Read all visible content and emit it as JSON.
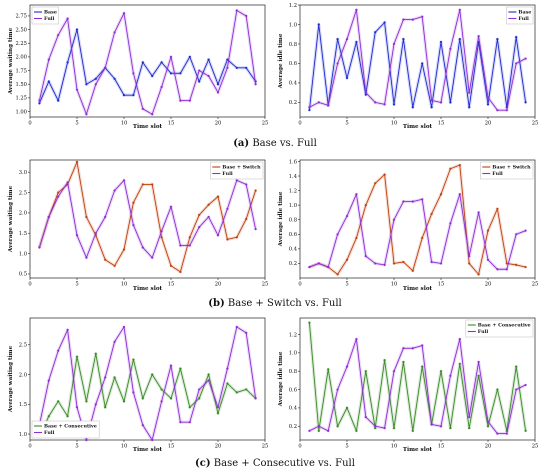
{
  "captions": [
    {
      "label": "(a)",
      "text": " Base vs. Full"
    },
    {
      "label": "(b)",
      "text": " Base + Switch vs. Full"
    },
    {
      "label": "(c)",
      "text": " Base + Consecutive vs. Full"
    }
  ],
  "colors": {
    "base": "#1f2bd0",
    "full": "#8e2fd6",
    "switch": "#c0400e",
    "consecutive": "#3a8a26"
  },
  "chart_data": [
    {
      "type": "line",
      "xlabel": "Time slot",
      "ylabel": "Average waiting time",
      "xlim": [
        0,
        25
      ],
      "ylim": [
        0.9,
        2.95
      ],
      "xticks": [
        0,
        5,
        10,
        15,
        20,
        25
      ],
      "yticks": [
        1.0,
        1.25,
        1.5,
        1.75,
        2.0,
        2.25,
        2.5,
        2.75
      ],
      "ytick_labels": [
        "1.00",
        "1.25",
        "1.50",
        "1.75",
        "2.00",
        "2.25",
        "2.50",
        "2.75"
      ],
      "legend_position": "top-left",
      "x": [
        1,
        2,
        3,
        4,
        5,
        6,
        7,
        8,
        9,
        10,
        11,
        12,
        13,
        14,
        15,
        16,
        17,
        18,
        19,
        20,
        21,
        22,
        23,
        24
      ],
      "series": [
        {
          "name": "Base",
          "color_key": "base",
          "values": [
            1.15,
            1.55,
            1.2,
            1.9,
            2.5,
            1.5,
            1.6,
            1.8,
            1.6,
            1.3,
            1.3,
            1.9,
            1.65,
            1.9,
            1.7,
            1.7,
            2.0,
            1.55,
            1.95,
            1.5,
            1.95,
            1.8,
            1.8,
            1.55
          ]
        },
        {
          "name": "Full",
          "color_key": "full",
          "values": [
            1.2,
            1.95,
            2.4,
            2.7,
            1.4,
            0.95,
            1.5,
            1.8,
            2.45,
            2.8,
            1.7,
            1.05,
            0.95,
            1.45,
            2.0,
            1.2,
            1.2,
            1.75,
            1.65,
            1.35,
            1.8,
            2.85,
            2.75,
            1.5
          ]
        }
      ]
    },
    {
      "type": "line",
      "xlabel": "Time slot",
      "ylabel": "Average idle time",
      "xlim": [
        0,
        25
      ],
      "ylim": [
        0.05,
        1.2
      ],
      "xticks": [
        0,
        5,
        10,
        15,
        20,
        25
      ],
      "yticks": [
        0.2,
        0.4,
        0.6,
        0.8,
        1.0,
        1.2
      ],
      "ytick_labels": [
        "0.2",
        "0.4",
        "0.6",
        "0.8",
        "1.0",
        "1.2"
      ],
      "legend_position": "top-right",
      "x": [
        1,
        2,
        3,
        4,
        5,
        6,
        7,
        8,
        9,
        10,
        11,
        12,
        13,
        14,
        15,
        16,
        17,
        18,
        19,
        20,
        21,
        22,
        23,
        24
      ],
      "series": [
        {
          "name": "Base",
          "color_key": "base",
          "values": [
            0.12,
            1.0,
            0.17,
            0.85,
            0.45,
            0.82,
            0.28,
            0.92,
            1.02,
            0.18,
            0.85,
            0.15,
            0.6,
            0.15,
            0.82,
            0.2,
            0.85,
            0.15,
            0.82,
            0.18,
            0.85,
            0.15,
            0.87,
            0.2
          ]
        },
        {
          "name": "Full",
          "color_key": "full",
          "values": [
            0.15,
            0.2,
            0.17,
            0.6,
            0.85,
            1.15,
            0.3,
            0.2,
            0.18,
            0.8,
            1.05,
            1.05,
            1.08,
            0.22,
            0.2,
            0.75,
            1.15,
            0.3,
            0.88,
            0.25,
            0.12,
            0.12,
            0.6,
            0.65
          ]
        }
      ]
    },
    {
      "type": "line",
      "xlabel": "Time slot",
      "ylabel": "Average waiting time",
      "xlim": [
        0,
        25
      ],
      "ylim": [
        0.4,
        3.3
      ],
      "xticks": [
        0,
        5,
        10,
        15,
        20,
        25
      ],
      "yticks": [
        0.5,
        1.0,
        1.5,
        2.0,
        2.5,
        3.0
      ],
      "ytick_labels": [
        "0.5",
        "1.0",
        "1.5",
        "2.0",
        "2.5",
        "3.0"
      ],
      "legend_position": "top-right",
      "x": [
        1,
        2,
        3,
        4,
        5,
        6,
        7,
        8,
        9,
        10,
        11,
        12,
        13,
        14,
        15,
        16,
        17,
        18,
        19,
        20,
        21,
        22,
        23,
        24
      ],
      "series": [
        {
          "name": "Base + Switch",
          "color_key": "switch",
          "values": [
            1.15,
            1.9,
            2.5,
            2.7,
            3.25,
            1.9,
            1.45,
            0.85,
            0.7,
            1.1,
            2.25,
            2.7,
            2.7,
            1.4,
            0.7,
            0.55,
            1.4,
            1.95,
            2.2,
            2.4,
            1.35,
            1.4,
            1.85,
            2.55
          ]
        },
        {
          "name": "Full",
          "color_key": "full",
          "values": [
            1.15,
            1.9,
            2.4,
            2.75,
            1.45,
            0.9,
            1.5,
            1.9,
            2.55,
            2.8,
            1.7,
            1.15,
            0.9,
            1.55,
            2.15,
            1.2,
            1.2,
            1.65,
            1.9,
            1.45,
            2.1,
            2.8,
            2.7,
            1.6
          ]
        }
      ]
    },
    {
      "type": "line",
      "xlabel": "Time slot",
      "ylabel": "Average idle time",
      "xlim": [
        0,
        25
      ],
      "ylim": [
        0.0,
        1.62
      ],
      "xticks": [
        0,
        5,
        10,
        15,
        20,
        25
      ],
      "yticks": [
        0.2,
        0.4,
        0.6,
        0.8,
        1.0,
        1.2,
        1.4,
        1.6
      ],
      "ytick_labels": [
        "0.2",
        "0.4",
        "0.6",
        "0.8",
        "1.0",
        "1.2",
        "1.4",
        "1.6"
      ],
      "legend_position": "top-right",
      "x": [
        1,
        2,
        3,
        4,
        5,
        6,
        7,
        8,
        9,
        10,
        11,
        12,
        13,
        14,
        15,
        16,
        17,
        18,
        19,
        20,
        21,
        22,
        23,
        24
      ],
      "series": [
        {
          "name": "Base + Switch",
          "color_key": "switch",
          "values": [
            0.15,
            0.2,
            0.15,
            0.05,
            0.25,
            0.55,
            1.0,
            1.3,
            1.42,
            0.2,
            0.22,
            0.1,
            0.55,
            0.88,
            1.15,
            1.5,
            1.55,
            0.2,
            0.05,
            0.65,
            0.95,
            0.2,
            0.18,
            0.15
          ]
        },
        {
          "name": "Full",
          "color_key": "full",
          "values": [
            0.15,
            0.2,
            0.15,
            0.6,
            0.85,
            1.15,
            0.3,
            0.2,
            0.18,
            0.8,
            1.05,
            1.05,
            1.08,
            0.22,
            0.2,
            0.75,
            1.15,
            0.3,
            0.9,
            0.25,
            0.12,
            0.12,
            0.6,
            0.65
          ]
        }
      ]
    },
    {
      "type": "line",
      "xlabel": "Time slot",
      "ylabel": "Average waiting time",
      "xlim": [
        0,
        25
      ],
      "ylim": [
        0.9,
        2.95
      ],
      "xticks": [
        0,
        5,
        10,
        15,
        20,
        25
      ],
      "yticks": [
        1.0,
        1.5,
        2.0,
        2.5
      ],
      "ytick_labels": [
        "1.0",
        "1.5",
        "2.0",
        "2.5"
      ],
      "legend_position": "bottom-left",
      "x": [
        1,
        2,
        3,
        4,
        5,
        6,
        7,
        8,
        9,
        10,
        11,
        12,
        13,
        14,
        15,
        16,
        17,
        18,
        19,
        20,
        21,
        22,
        23,
        24
      ],
      "series": [
        {
          "name": "Base + Consecutive",
          "color_key": "consecutive",
          "values": [
            0.95,
            1.3,
            1.55,
            1.3,
            2.3,
            1.55,
            2.35,
            1.45,
            1.95,
            1.55,
            2.25,
            1.6,
            2.0,
            1.75,
            1.6,
            2.1,
            1.45,
            1.6,
            2.0,
            1.35,
            1.85,
            1.7,
            1.75,
            1.6
          ]
        },
        {
          "name": "Full",
          "color_key": "full",
          "values": [
            1.15,
            1.9,
            2.4,
            2.75,
            1.45,
            0.9,
            1.5,
            1.95,
            2.55,
            2.8,
            1.7,
            1.15,
            0.9,
            1.55,
            2.15,
            1.2,
            1.2,
            1.75,
            1.9,
            1.45,
            2.1,
            2.8,
            2.7,
            1.6
          ]
        }
      ]
    },
    {
      "type": "line",
      "xlabel": "Time slot",
      "ylabel": "Average idle time",
      "xlim": [
        0,
        25
      ],
      "ylim": [
        0.05,
        1.38
      ],
      "xticks": [
        0,
        5,
        10,
        15,
        20,
        25
      ],
      "yticks": [
        0.2,
        0.4,
        0.6,
        0.8,
        1.0,
        1.2
      ],
      "ytick_labels": [
        "0.2",
        "0.4",
        "0.6",
        "0.8",
        "1.0",
        "1.2"
      ],
      "legend_position": "top-right",
      "x": [
        1,
        2,
        3,
        4,
        5,
        6,
        7,
        8,
        9,
        10,
        11,
        12,
        13,
        14,
        15,
        16,
        17,
        18,
        19,
        20,
        21,
        22,
        23,
        24
      ],
      "series": [
        {
          "name": "Base + Consecutive",
          "color_key": "consecutive",
          "values": [
            1.33,
            0.15,
            0.82,
            0.2,
            0.4,
            0.15,
            0.8,
            0.18,
            0.92,
            0.18,
            0.9,
            0.15,
            0.85,
            0.22,
            0.8,
            0.18,
            0.88,
            0.18,
            0.75,
            0.2,
            0.6,
            0.15,
            0.85,
            0.15
          ]
        },
        {
          "name": "Full",
          "color_key": "full",
          "values": [
            0.15,
            0.2,
            0.15,
            0.6,
            0.85,
            1.15,
            0.3,
            0.2,
            0.18,
            0.8,
            1.05,
            1.05,
            1.08,
            0.22,
            0.2,
            0.75,
            1.15,
            0.3,
            0.9,
            0.25,
            0.12,
            0.12,
            0.6,
            0.65
          ]
        }
      ]
    }
  ]
}
